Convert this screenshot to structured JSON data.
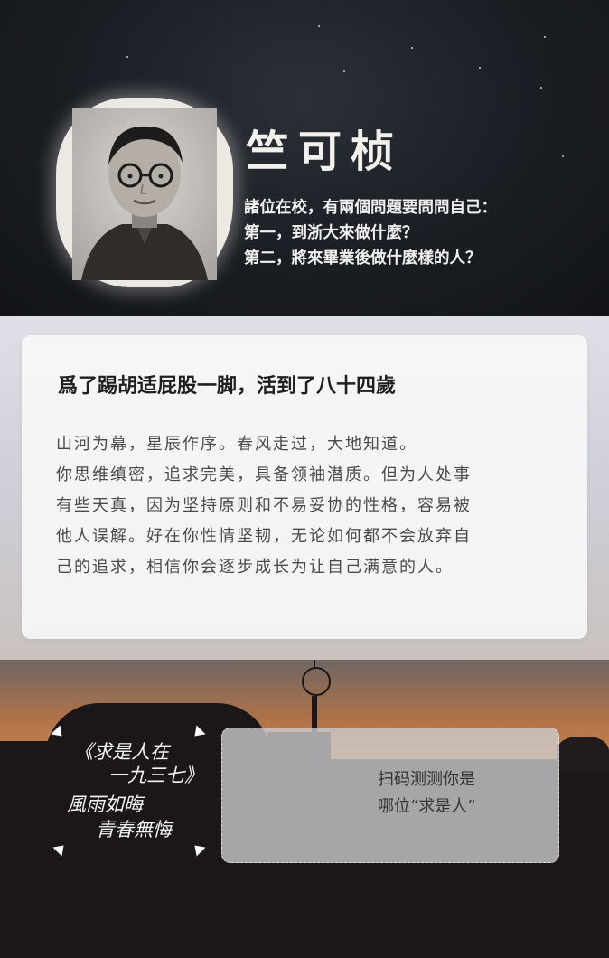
{
  "header": {
    "name": "竺可桢",
    "quote_lines": [
      "諸位在校，有兩個問題要問問自己：",
      "第一，到浙大來做什麼？",
      "第二，將來畢業後做什麼樣的人？"
    ]
  },
  "card": {
    "title": "爲了踢胡适屁股一脚，活到了八十四歲",
    "lines": [
      "山河为幕，星辰作序。春风走过，大地知道。",
      "你思维缜密，追求完美，具备领袖潜质。但为人处事",
      "有些天真，因为坚持原则和不易妥协的性格，容易被",
      "他人误解。好在你性情坚韧，无论如何都不会放弃自",
      "己的追求，相信你会逐步成长为让自己满意的人。"
    ]
  },
  "motto": {
    "line1": "《求是人在",
    "line2": "一九三七》",
    "line3": "風雨如晦",
    "line4": "青春無悔"
  },
  "qr_prompt": {
    "line1": "扫码测测你是",
    "line2": "哪位“求是人”"
  },
  "colors": {
    "header_bg": "#1a1d22",
    "card_bg": "#f8f8fa",
    "sunset": "#c9844d"
  }
}
